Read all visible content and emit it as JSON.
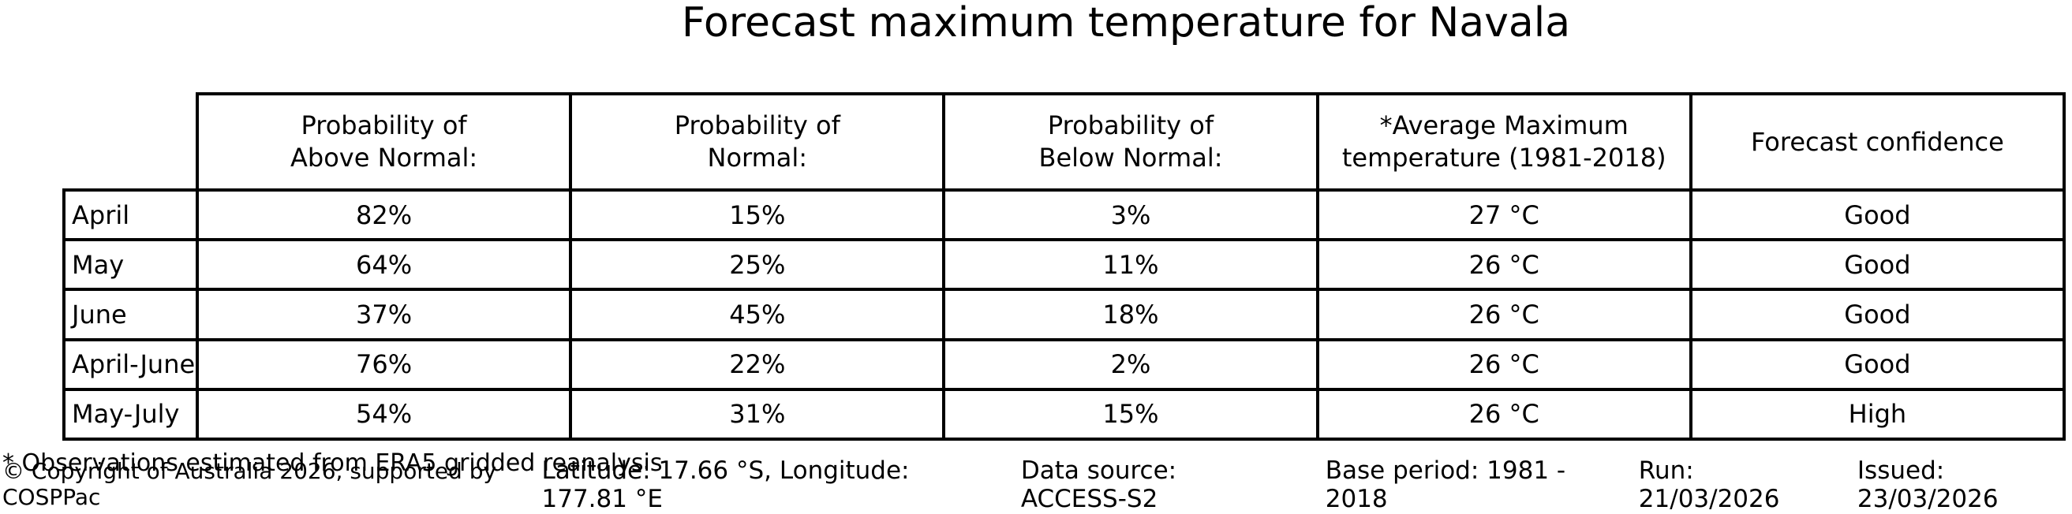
{
  "title": "Forecast maximum temperature for Navala",
  "table": {
    "headers": [
      "Probability of\nAbove Normal:",
      "Probability of\nNormal:",
      "Probability of\nBelow Normal:",
      "*Average Maximum\ntemperature (1981-2018)",
      "Forecast confidence"
    ],
    "rows": [
      {
        "label": "April",
        "above": "82%",
        "normal": "15%",
        "below": "3%",
        "avg_max": "27 °C",
        "confidence": "Good"
      },
      {
        "label": "May",
        "above": "64%",
        "normal": "25%",
        "below": "11%",
        "avg_max": "26 °C",
        "confidence": "Good"
      },
      {
        "label": "June",
        "above": "37%",
        "normal": "45%",
        "below": "18%",
        "avg_max": "26 °C",
        "confidence": "Good"
      },
      {
        "label": "April-June",
        "above": "76%",
        "normal": "22%",
        "below": "2%",
        "avg_max": "26 °C",
        "confidence": "Good"
      },
      {
        "label": "May-July",
        "above": "54%",
        "normal": "31%",
        "below": "15%",
        "avg_max": "26 °C",
        "confidence": "High"
      }
    ]
  },
  "footnote": "* Observations estimated from ERA5 gridded reanalysis",
  "footer": {
    "copyright": "© Copyright of Australia 2026, supported by COSPPac",
    "latitude_longitude": "Latitude: 17.66 °S, Longitude: 177.81 °E",
    "data_source": "Data source: ACCESS-S2",
    "base_period": "Base period: 1981 - 2018",
    "run": "Run: 21/03/2026",
    "issued": "Issued: 23/03/2026"
  },
  "colors": {
    "text": "#000000",
    "background": "#ffffff",
    "border": "#000000"
  },
  "chart_data": {
    "type": "table",
    "title": "Forecast maximum temperature for Navala",
    "columns": [
      "",
      "Probability of Above Normal:",
      "Probability of Normal:",
      "Probability of Below Normal:",
      "*Average Maximum temperature (1981-2018)",
      "Forecast confidence"
    ],
    "rows": [
      [
        "April",
        "82%",
        "15%",
        "3%",
        "27 °C",
        "Good"
      ],
      [
        "May",
        "64%",
        "25%",
        "11%",
        "26 °C",
        "Good"
      ],
      [
        "June",
        "37%",
        "45%",
        "18%",
        "26 °C",
        "Good"
      ],
      [
        "April-June",
        "76%",
        "22%",
        "2%",
        "26 °C",
        "Good"
      ],
      [
        "May-July",
        "54%",
        "31%",
        "15%",
        "26 °C",
        "High"
      ]
    ]
  }
}
